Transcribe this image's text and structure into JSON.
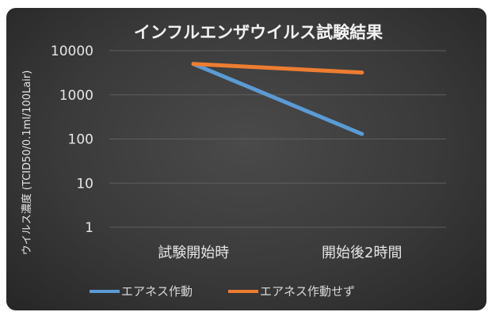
{
  "chart_data": {
    "type": "line",
    "title": "インフルエンザウイルス試験結果",
    "ylabel": "ウイルス濃度 (TCID50/0.1ml/100Lair)",
    "xlabel": "",
    "y_scale": "log",
    "ylim": [
      1,
      10000
    ],
    "y_ticks": [
      "1",
      "10",
      "100",
      "1000",
      "10000"
    ],
    "categories": [
      "試験開始時",
      "開始後2時間"
    ],
    "series": [
      {
        "name": "エアネス作動",
        "color": "#5b9bd5",
        "values": [
          5000,
          130
        ]
      },
      {
        "name": "エアネス作動せず",
        "color": "#ed7d31",
        "values": [
          5000,
          3200
        ]
      }
    ],
    "grid": true,
    "legend_position": "bottom"
  }
}
